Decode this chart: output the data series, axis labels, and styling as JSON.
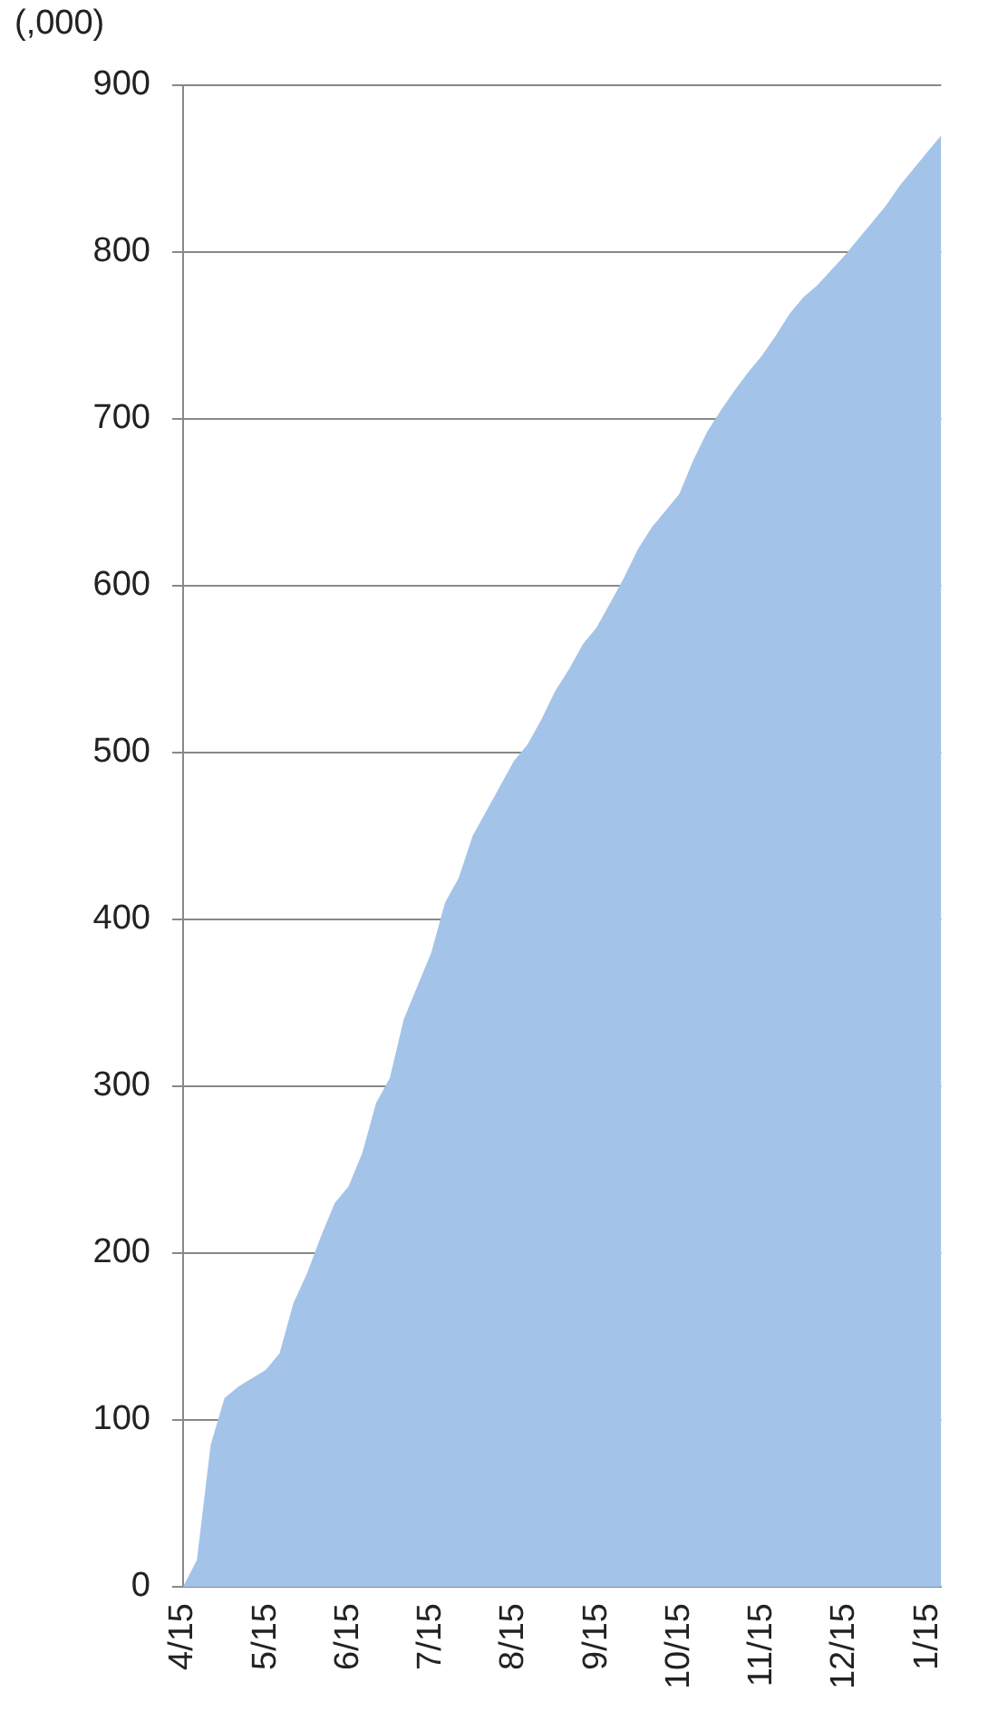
{
  "chart_data": {
    "type": "area",
    "ylabel": "(,000)",
    "color": "#a3c4e8",
    "categories": [
      "4/15",
      null,
      null,
      null,
      null,
      null,
      "5/15",
      null,
      null,
      null,
      null,
      null,
      "6/15",
      null,
      null,
      null,
      null,
      null,
      "7/15",
      null,
      null,
      null,
      null,
      null,
      "8/15",
      null,
      null,
      null,
      null,
      null,
      "9/15",
      null,
      null,
      null,
      null,
      null,
      "10/15",
      null,
      null,
      null,
      null,
      null,
      "11/15",
      null,
      null,
      null,
      null,
      null,
      "12/15",
      null,
      null,
      null,
      null,
      null,
      "1/15",
      null
    ],
    "values": [
      0,
      16,
      85,
      113,
      120,
      125,
      130,
      140,
      170,
      188,
      210,
      230,
      240,
      260,
      290,
      305,
      340,
      360,
      380,
      410,
      425,
      450,
      465,
      480,
      495,
      505,
      520,
      537,
      550,
      565,
      575,
      590,
      605,
      622,
      635,
      645,
      655,
      675,
      692,
      705,
      717,
      728,
      738,
      750,
      763,
      773,
      780,
      789,
      798,
      808,
      818,
      828,
      840,
      850,
      860,
      870
    ],
    "ylim": [
      0,
      900
    ],
    "yticks": [
      0,
      100,
      200,
      300,
      400,
      500,
      600,
      700,
      800,
      900
    ],
    "grid": "y"
  }
}
